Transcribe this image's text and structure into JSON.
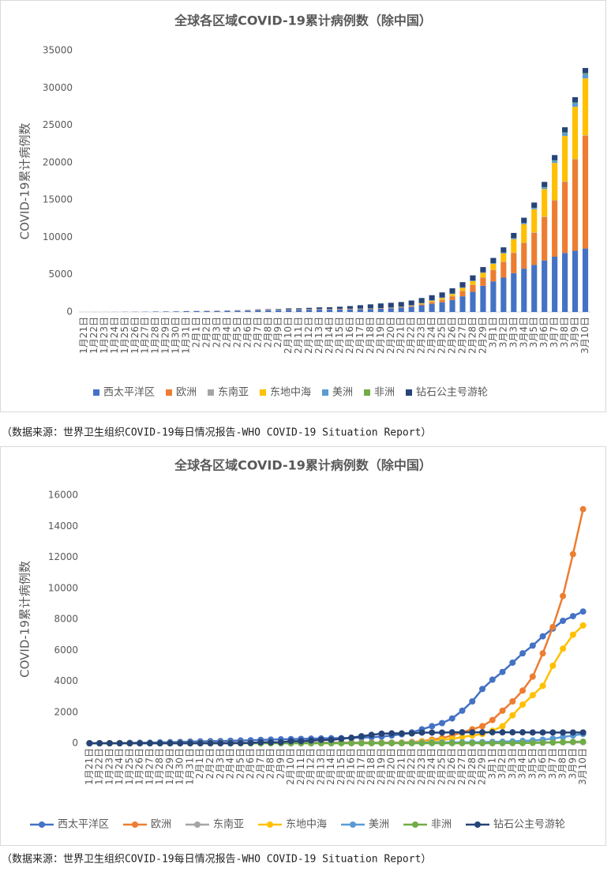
{
  "chart_data": [
    {
      "type": "bar",
      "stacked": true,
      "title": "全球各区域COVID-19累计病例数（除中国）",
      "y_label": "COVID-19累计病例数",
      "source": "（数据来源：世界卫生组织COVID-19每日情况报告-WHO COVID-19 Situation Report）",
      "categories": [
        "1月21日",
        "1月22日",
        "1月23日",
        "1月24日",
        "1月25日",
        "1月26日",
        "1月27日",
        "1月28日",
        "1月29日",
        "1月30日",
        "1月31日",
        "2月1日",
        "2月2日",
        "2月3日",
        "2月4日",
        "2月5日",
        "2月6日",
        "2月7日",
        "2月8日",
        "2月9日",
        "2月10日",
        "2月11日",
        "2月12日",
        "2月13日",
        "2月14日",
        "2月15日",
        "2月16日",
        "2月17日",
        "2月18日",
        "2月19日",
        "2月20日",
        "2月21日",
        "2月22日",
        "2月23日",
        "2月24日",
        "2月25日",
        "2月26日",
        "2月27日",
        "2月28日",
        "2月29日",
        "3月1日",
        "3月2日",
        "3月3日",
        "3月4日",
        "3月5日",
        "3月6日",
        "3月7日",
        "3月8日",
        "3月9日",
        "3月10日"
      ],
      "ylim": [
        0,
        35000
      ],
      "yticks": [
        0,
        5000,
        10000,
        15000,
        20000,
        25000,
        30000,
        35000
      ],
      "grid": false,
      "legend": "bottom",
      "series": [
        {
          "name": "西太平洋区",
          "color": "#4472c4",
          "values": [
            4,
            6,
            7,
            11,
            23,
            29,
            37,
            56,
            68,
            82,
            106,
            122,
            132,
            140,
            159,
            176,
            191,
            216,
            233,
            253,
            268,
            282,
            297,
            310,
            323,
            330,
            343,
            361,
            386,
            427,
            498,
            580,
            700,
            900,
            1100,
            1300,
            1600,
            2100,
            2700,
            3500,
            4100,
            4600,
            5200,
            5800,
            6300,
            6900,
            7400,
            7900,
            8200,
            8500
          ]
        },
        {
          "name": "欧洲",
          "color": "#ed7d31",
          "values": [
            0,
            0,
            0,
            0,
            3,
            3,
            4,
            4,
            7,
            9,
            13,
            16,
            19,
            23,
            23,
            25,
            27,
            31,
            31,
            32,
            38,
            39,
            39,
            43,
            46,
            46,
            46,
            47,
            47,
            47,
            47,
            47,
            80,
            130,
            230,
            330,
            500,
            700,
            900,
            1100,
            1500,
            2100,
            2700,
            3400,
            4300,
            5800,
            7500,
            9500,
            12200,
            15100
          ]
        },
        {
          "name": "东南亚",
          "color": "#a5a5a5",
          "values": [
            0,
            0,
            0,
            2,
            3,
            4,
            5,
            8,
            8,
            8,
            14,
            16,
            18,
            19,
            21,
            22,
            25,
            25,
            25,
            25,
            25,
            25,
            25,
            25,
            25,
            25,
            25,
            26,
            26,
            26,
            26,
            26,
            26,
            26,
            27,
            28,
            29,
            30,
            32,
            35,
            40,
            45,
            50,
            55,
            58,
            60,
            63,
            65,
            68,
            70
          ]
        },
        {
          "name": "东地中海",
          "color": "#ffc000",
          "values": [
            0,
            0,
            0,
            0,
            0,
            0,
            0,
            0,
            4,
            4,
            4,
            4,
            5,
            5,
            5,
            5,
            5,
            5,
            7,
            7,
            7,
            7,
            7,
            8,
            8,
            8,
            8,
            8,
            8,
            9,
            9,
            30,
            60,
            90,
            150,
            220,
            280,
            400,
            500,
            600,
            800,
            1100,
            1800,
            2500,
            3100,
            3700,
            5000,
            6100,
            7000,
            7600
          ]
        },
        {
          "name": "美洲",
          "color": "#5b9bd5",
          "values": [
            0,
            1,
            1,
            2,
            3,
            5,
            5,
            5,
            6,
            6,
            6,
            8,
            8,
            11,
            11,
            12,
            12,
            12,
            12,
            12,
            12,
            13,
            13,
            15,
            15,
            15,
            15,
            15,
            15,
            15,
            15,
            16,
            36,
            36,
            50,
            50,
            55,
            60,
            65,
            70,
            90,
            100,
            120,
            150,
            180,
            230,
            300,
            400,
            500,
            600
          ]
        },
        {
          "name": "非洲",
          "color": "#70ad47",
          "values": [
            0,
            0,
            0,
            0,
            0,
            0,
            0,
            0,
            0,
            0,
            0,
            0,
            0,
            0,
            0,
            0,
            0,
            0,
            0,
            0,
            0,
            0,
            0,
            0,
            0,
            1,
            1,
            1,
            1,
            1,
            1,
            1,
            1,
            1,
            1,
            1,
            1,
            2,
            2,
            3,
            3,
            4,
            8,
            12,
            20,
            30,
            48,
            70,
            90,
            100
          ]
        },
        {
          "name": "钻石公主号游轮",
          "color": "#264478",
          "values": [
            0,
            0,
            0,
            0,
            0,
            0,
            0,
            0,
            0,
            0,
            0,
            0,
            0,
            0,
            0,
            10,
            20,
            61,
            64,
            70,
            135,
            135,
            175,
            218,
            218,
            285,
            355,
            454,
            542,
            621,
            634,
            634,
            634,
            691,
            691,
            691,
            705,
            705,
            705,
            705,
            705,
            705,
            706,
            706,
            696,
            696,
            696,
            696,
            696,
            696
          ]
        }
      ]
    },
    {
      "type": "line",
      "title": "全球各区域COVID-19累计病例数（除中国）",
      "y_label": "COVID-19累计病例数",
      "source": "（数据来源：世界卫生组织COVID-19每日情况报告-WHO COVID-19 Situation Report）",
      "categories": [
        "1月21日",
        "1月22日",
        "1月23日",
        "1月24日",
        "1月25日",
        "1月26日",
        "1月27日",
        "1月28日",
        "1月29日",
        "1月30日",
        "1月31日",
        "2月1日",
        "2月2日",
        "2月3日",
        "2月4日",
        "2月5日",
        "2月6日",
        "2月7日",
        "2月8日",
        "2月9日",
        "2月10日",
        "2月11日",
        "2月12日",
        "2月13日",
        "2月14日",
        "2月15日",
        "2月16日",
        "2月17日",
        "2月18日",
        "2月19日",
        "2月20日",
        "2月21日",
        "2月22日",
        "2月23日",
        "2月24日",
        "2月25日",
        "2月26日",
        "2月27日",
        "2月28日",
        "2月29日",
        "3月1日",
        "3月2日",
        "3月3日",
        "3月4日",
        "3月5日",
        "3月6日",
        "3月7日",
        "3月8日",
        "3月9日",
        "3月10日"
      ],
      "ylim": [
        0,
        16000
      ],
      "yticks": [
        0,
        2000,
        4000,
        6000,
        8000,
        10000,
        12000,
        14000,
        16000
      ],
      "grid": false,
      "legend": "bottom",
      "series": [
        {
          "name": "西太平洋区",
          "color": "#4472c4",
          "values": [
            4,
            6,
            7,
            11,
            23,
            29,
            37,
            56,
            68,
            82,
            106,
            122,
            132,
            140,
            159,
            176,
            191,
            216,
            233,
            253,
            268,
            282,
            297,
            310,
            323,
            330,
            343,
            361,
            386,
            427,
            498,
            580,
            700,
            900,
            1100,
            1300,
            1600,
            2100,
            2700,
            3500,
            4100,
            4600,
            5200,
            5800,
            6300,
            6900,
            7400,
            7900,
            8200,
            8500
          ]
        },
        {
          "name": "欧洲",
          "color": "#ed7d31",
          "values": [
            0,
            0,
            0,
            0,
            3,
            3,
            4,
            4,
            7,
            9,
            13,
            16,
            19,
            23,
            23,
            25,
            27,
            31,
            31,
            32,
            38,
            39,
            39,
            43,
            46,
            46,
            46,
            47,
            47,
            47,
            47,
            47,
            80,
            130,
            230,
            330,
            500,
            700,
            900,
            1100,
            1500,
            2100,
            2700,
            3400,
            4300,
            5800,
            7500,
            9500,
            12200,
            15100
          ]
        },
        {
          "name": "东南亚",
          "color": "#a5a5a5",
          "values": [
            0,
            0,
            0,
            2,
            3,
            4,
            5,
            8,
            8,
            8,
            14,
            16,
            18,
            19,
            21,
            22,
            25,
            25,
            25,
            25,
            25,
            25,
            25,
            25,
            25,
            25,
            25,
            26,
            26,
            26,
            26,
            26,
            26,
            26,
            27,
            28,
            29,
            30,
            32,
            35,
            40,
            45,
            50,
            55,
            58,
            60,
            63,
            65,
            68,
            70
          ]
        },
        {
          "name": "东地中海",
          "color": "#ffc000",
          "values": [
            0,
            0,
            0,
            0,
            0,
            0,
            0,
            0,
            4,
            4,
            4,
            4,
            5,
            5,
            5,
            5,
            5,
            5,
            7,
            7,
            7,
            7,
            7,
            8,
            8,
            8,
            8,
            8,
            8,
            9,
            9,
            30,
            60,
            90,
            150,
            220,
            280,
            400,
            500,
            600,
            800,
            1100,
            1800,
            2500,
            3100,
            3700,
            5000,
            6100,
            7000,
            7600
          ]
        },
        {
          "name": "美洲",
          "color": "#5b9bd5",
          "values": [
            0,
            1,
            1,
            2,
            3,
            5,
            5,
            5,
            6,
            6,
            6,
            8,
            8,
            11,
            11,
            12,
            12,
            12,
            12,
            12,
            12,
            13,
            13,
            15,
            15,
            15,
            15,
            15,
            15,
            15,
            15,
            16,
            36,
            36,
            50,
            50,
            55,
            60,
            65,
            70,
            90,
            100,
            120,
            150,
            180,
            230,
            300,
            400,
            500,
            600
          ]
        },
        {
          "name": "非洲",
          "color": "#70ad47",
          "values": [
            0,
            0,
            0,
            0,
            0,
            0,
            0,
            0,
            0,
            0,
            0,
            0,
            0,
            0,
            0,
            0,
            0,
            0,
            0,
            0,
            0,
            0,
            0,
            0,
            0,
            1,
            1,
            1,
            1,
            1,
            1,
            1,
            1,
            1,
            1,
            1,
            1,
            2,
            2,
            3,
            3,
            4,
            8,
            12,
            20,
            30,
            48,
            70,
            90,
            100
          ]
        },
        {
          "name": "钻石公主号游轮",
          "color": "#264478",
          "values": [
            0,
            0,
            0,
            0,
            0,
            0,
            0,
            0,
            0,
            0,
            0,
            0,
            0,
            0,
            0,
            10,
            20,
            61,
            64,
            70,
            135,
            135,
            175,
            218,
            218,
            285,
            355,
            454,
            542,
            621,
            634,
            634,
            634,
            691,
            691,
            691,
            705,
            705,
            705,
            705,
            705,
            705,
            706,
            706,
            696,
            696,
            696,
            696,
            696,
            696
          ]
        }
      ]
    }
  ]
}
